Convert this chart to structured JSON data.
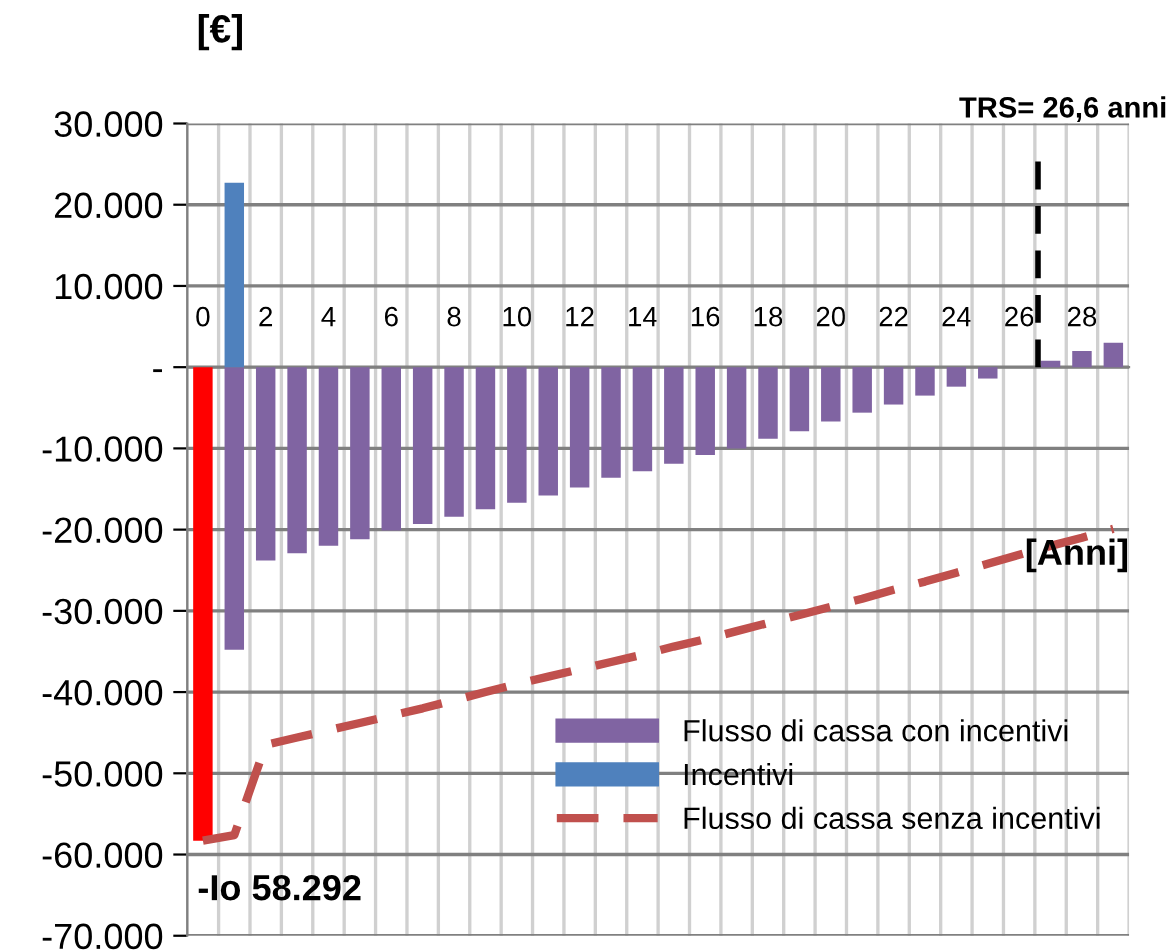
{
  "chart_data": {
    "type": "bar",
    "stacked": true,
    "ylabel": "[€]",
    "xlabel": "[Anni]",
    "x": [
      0,
      1,
      2,
      3,
      4,
      5,
      6,
      7,
      8,
      9,
      10,
      11,
      12,
      13,
      14,
      15,
      16,
      17,
      18,
      19,
      20,
      21,
      22,
      23,
      24,
      25,
      26,
      27,
      28,
      29
    ],
    "xlim": [
      -0.5,
      29.5
    ],
    "xticks": [
      0,
      2,
      4,
      6,
      8,
      10,
      12,
      14,
      16,
      18,
      20,
      22,
      24,
      26,
      28
    ],
    "series": [
      {
        "name": "Flusso di cassa con incentivi",
        "color": "#8064a2",
        "colors": [
          "#ff0000",
          "#8064a2",
          "#8064a2",
          "#8064a2",
          "#8064a2",
          "#8064a2",
          "#8064a2",
          "#8064a2",
          "#8064a2",
          "#8064a2",
          "#8064a2",
          "#8064a2",
          "#8064a2",
          "#8064a2",
          "#8064a2",
          "#8064a2",
          "#8064a2",
          "#8064a2",
          "#8064a2",
          "#8064a2",
          "#8064a2",
          "#8064a2",
          "#8064a2",
          "#8064a2",
          "#8064a2",
          "#8064a2",
          "#8064a2",
          "#8064a2",
          "#8064a2",
          "#8064a2"
        ],
        "values": [
          -58292,
          -34800,
          -23800,
          -22900,
          -22000,
          -21200,
          -20100,
          -19300,
          -18400,
          -17500,
          -16700,
          -15800,
          -14800,
          -13600,
          -12800,
          -11900,
          -10800,
          -10000,
          -8800,
          -7900,
          -6700,
          -5600,
          -4600,
          -3500,
          -2400,
          -1400,
          null,
          800,
          2000,
          3000
        ]
      },
      {
        "name": "Incentivi",
        "color": "#4f81bd",
        "values": [
          null,
          22700,
          null,
          null,
          null,
          null,
          null,
          null,
          null,
          null,
          null,
          null,
          null,
          null,
          null,
          null,
          null,
          null,
          null,
          null,
          null,
          null,
          null,
          null,
          null,
          null,
          null,
          null,
          null,
          null
        ]
      },
      {
        "name": "Flusso di cassa senza incentivi",
        "type": "line",
        "line_style": "dashed",
        "color": "#c0504d",
        "values": [
          -58292,
          -57600,
          -46500,
          -45600,
          -44700,
          -43800,
          -42900,
          -42000,
          -41000,
          -40000,
          -39000,
          -38100,
          -37200,
          -36300,
          -35400,
          -34400,
          -33500,
          -32500,
          -31500,
          -30500,
          -29500,
          -28500,
          -27400,
          -26400,
          -25300,
          -24200,
          -23100,
          -22000,
          -21000,
          -19900
        ]
      }
    ],
    "ylim": [
      -70000,
      30000
    ],
    "yticks": [
      {
        "value": -70000,
        "label": "-70.000"
      },
      {
        "value": -60000,
        "label": "-60.000"
      },
      {
        "value": -50000,
        "label": "-50.000"
      },
      {
        "value": -40000,
        "label": "-40.000"
      },
      {
        "value": -30000,
        "label": "-30.000"
      },
      {
        "value": -20000,
        "label": "-20.000"
      },
      {
        "value": -10000,
        "label": "-10.000"
      },
      {
        "value": 0,
        "label": "-"
      },
      {
        "value": 10000,
        "label": "10.000"
      },
      {
        "value": 20000,
        "label": "20.000"
      },
      {
        "value": 30000,
        "label": "30.000"
      }
    ],
    "ref_lines": [
      {
        "axis": "x",
        "value": 26.6,
        "label": "TRS= 26,6 anni",
        "color": "#000000",
        "line_style": "dashed"
      }
    ],
    "annotations": [
      {
        "text": "-Io 58.292",
        "x": 0,
        "y": -58292
      }
    ],
    "grid": true,
    "legend": "bottom right"
  }
}
